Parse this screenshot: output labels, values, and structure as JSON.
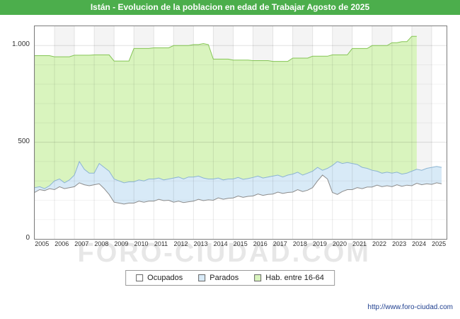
{
  "title": "Istán - Evolucion de la poblacion en edad de Trabajar Agosto de 2025",
  "watermark": "FORO-CIUDAD.COM",
  "footer": {
    "url": "http://www.foro-ciudad.com"
  },
  "colors": {
    "title_bg": "#4cae4c",
    "title_text": "#ffffff",
    "grid_minor": "rgba(0,0,0,0.05)",
    "grid_major": "rgba(0,0,0,0.12)",
    "grid_vertical": "rgba(0,0,0,0.09)",
    "band_fill": "#f4f4f4"
  },
  "chart_data": {
    "type": "area",
    "title": "Istán - Evolucion de la poblacion en edad de Trabajar Agosto de 2025",
    "xlabel": "",
    "ylabel": "",
    "xlim": [
      2005,
      2025.75
    ],
    "ylim": [
      0,
      1100
    ],
    "x_start": 2005,
    "x_step": 0.25,
    "x_ticks": [
      2005,
      2006,
      2007,
      2008,
      2009,
      2010,
      2011,
      2012,
      2013,
      2014,
      2015,
      2016,
      2017,
      2018,
      2019,
      2020,
      2021,
      2022,
      2023,
      2024,
      2025
    ],
    "y_ticks": [
      {
        "value": 0,
        "label": "0"
      },
      {
        "value": 500,
        "label": "500"
      },
      {
        "value": 1000,
        "label": "1.000"
      }
    ],
    "grid": true,
    "legend_position": "bottom",
    "legend": [
      {
        "label": "Ocupados",
        "fill": "#ffffff",
        "stroke": "#8c8c8c"
      },
      {
        "label": "Parados",
        "fill": "#d8eaf7",
        "stroke": "#8cb4d2"
      },
      {
        "label": "Hab. entre 16-64",
        "fill": "#d9f4be",
        "stroke": "#85c556"
      }
    ],
    "series": [
      {
        "name": "Hab. entre 16-64",
        "fill": "#d9f4be",
        "stroke": "#85c556",
        "values": [
          948,
          948,
          948,
          948,
          942,
          942,
          942,
          942,
          950,
          950,
          950,
          950,
          952,
          952,
          952,
          952,
          920,
          920,
          920,
          920,
          985,
          985,
          985,
          985,
          988,
          988,
          988,
          988,
          1000,
          1000,
          1000,
          1000,
          1005,
          1005,
          1010,
          1005,
          930,
          930,
          930,
          930,
          925,
          925,
          925,
          925,
          922,
          922,
          922,
          922,
          918,
          918,
          918,
          918,
          935,
          935,
          935,
          935,
          945,
          945,
          945,
          945,
          952,
          952,
          952,
          952,
          985,
          985,
          985,
          985,
          1000,
          1000,
          1000,
          1000,
          1015,
          1015,
          1020,
          1020,
          1048,
          1048
        ]
      },
      {
        "name": "Parados",
        "fill": "#d8eaf7",
        "stroke": "#8cb4d2",
        "values": [
          265,
          270,
          260,
          275,
          300,
          310,
          290,
          305,
          330,
          400,
          360,
          340,
          340,
          390,
          370,
          350,
          310,
          300,
          290,
          295,
          295,
          305,
          300,
          310,
          310,
          315,
          305,
          310,
          315,
          320,
          310,
          320,
          320,
          325,
          315,
          310,
          310,
          315,
          305,
          310,
          310,
          318,
          308,
          312,
          318,
          325,
          315,
          320,
          325,
          330,
          320,
          330,
          335,
          345,
          330,
          340,
          350,
          370,
          355,
          365,
          380,
          400,
          390,
          395,
          390,
          385,
          370,
          365,
          355,
          350,
          340,
          345,
          340,
          345,
          335,
          340,
          350,
          360,
          355,
          365,
          370,
          375,
          370
        ]
      },
      {
        "name": "Ocupados",
        "fill": "#ffffff",
        "stroke": "#8c8c8c",
        "values": [
          240,
          255,
          250,
          260,
          255,
          270,
          260,
          265,
          270,
          290,
          280,
          275,
          280,
          285,
          260,
          230,
          190,
          185,
          180,
          185,
          185,
          195,
          190,
          195,
          195,
          205,
          198,
          200,
          190,
          195,
          188,
          192,
          195,
          205,
          198,
          202,
          200,
          212,
          205,
          210,
          212,
          222,
          215,
          220,
          222,
          232,
          225,
          230,
          232,
          242,
          235,
          240,
          242,
          255,
          245,
          252,
          265,
          300,
          330,
          310,
          240,
          230,
          245,
          255,
          255,
          265,
          260,
          268,
          268,
          278,
          270,
          275,
          270,
          280,
          272,
          278,
          275,
          288,
          280,
          285,
          282,
          290,
          285
        ]
      }
    ]
  }
}
